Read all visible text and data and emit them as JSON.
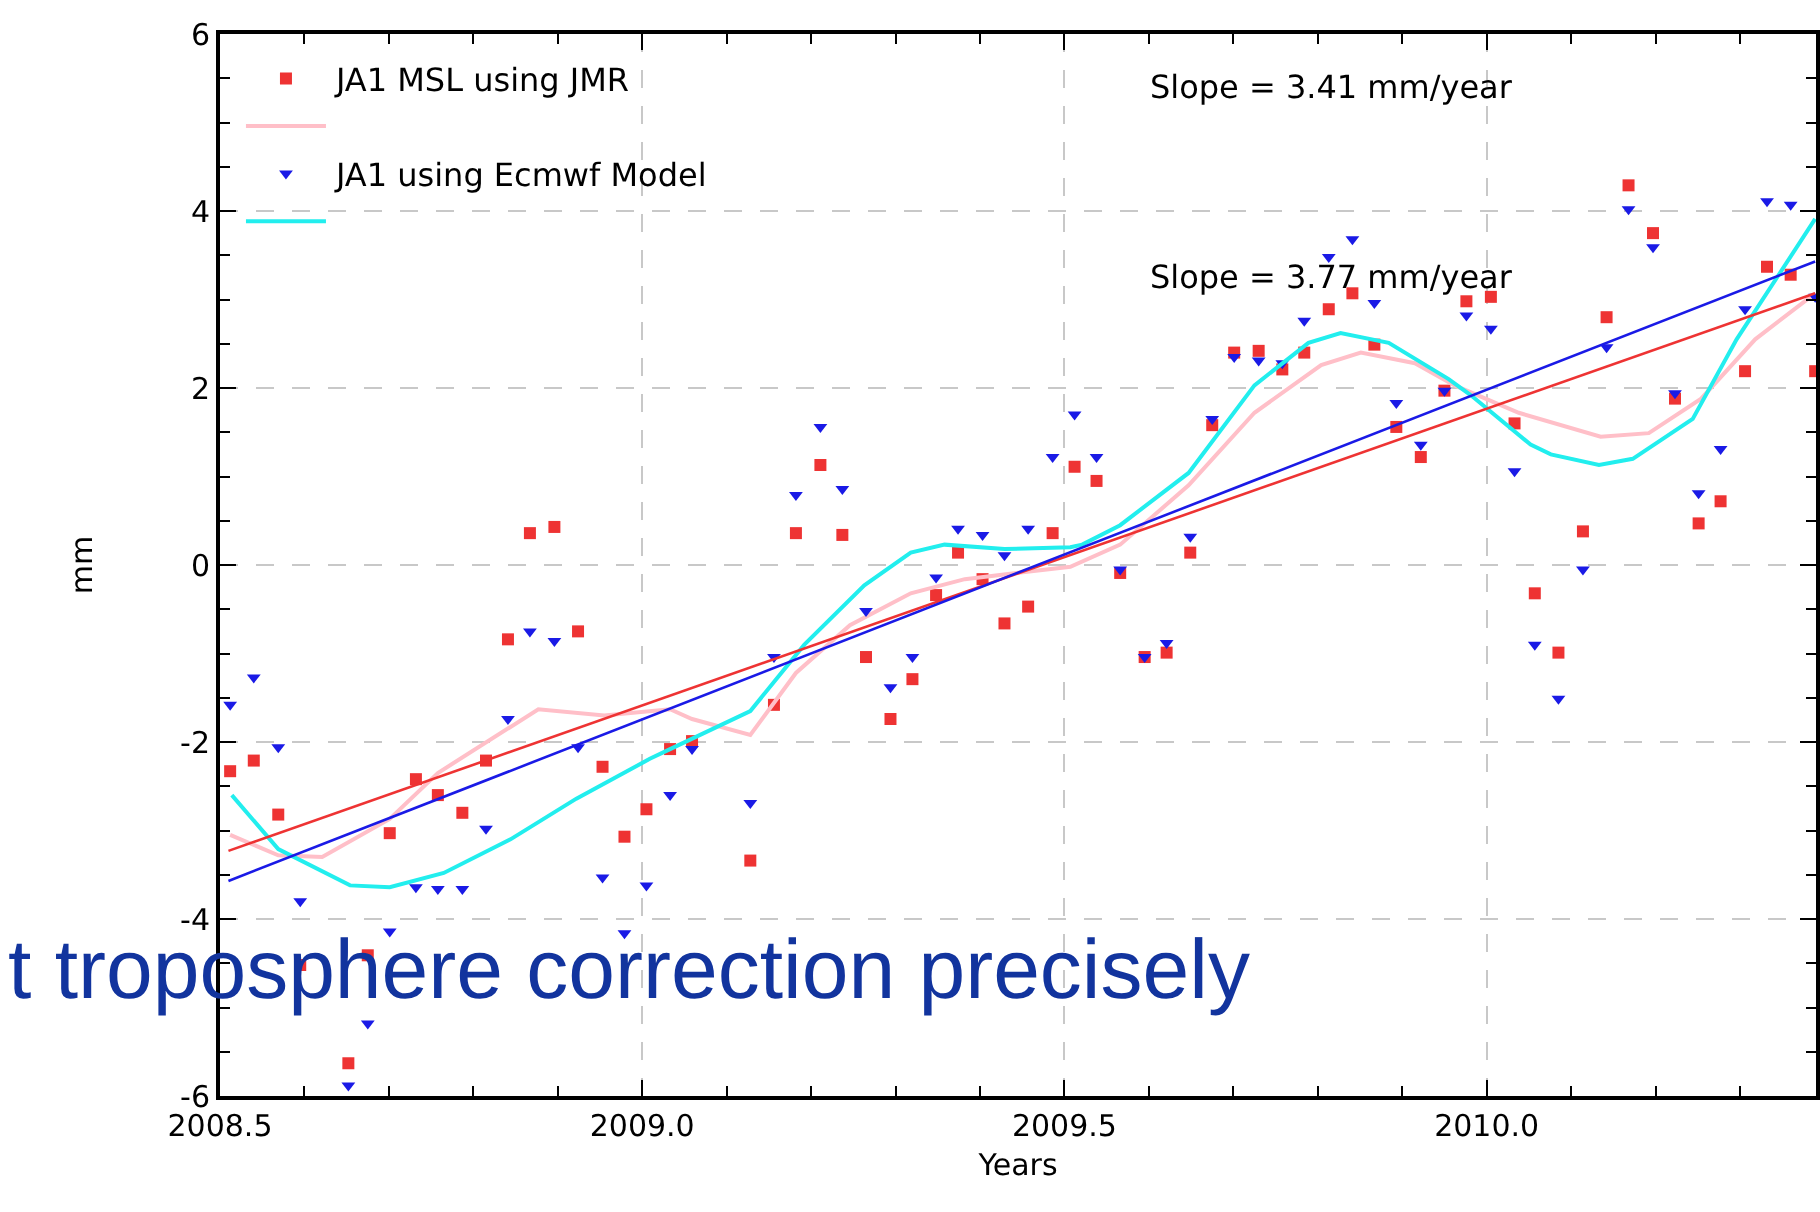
{
  "chart_data": {
    "type": "scatter",
    "xlabel": "Years",
    "ylabel": "mm",
    "xlim": [
      2008.5,
      2010.39
    ],
    "xticks": [
      {
        "value": 2008.5,
        "label": "2008.5"
      },
      {
        "value": 2009,
        "label": "2009.0"
      },
      {
        "value": 2009.5,
        "label": "2009.5"
      },
      {
        "value": 2010,
        "label": "2010.0"
      }
    ],
    "ylim": [
      -6,
      6
    ],
    "yticks": [
      -6,
      -4,
      -2,
      0,
      2,
      4,
      6
    ],
    "grid": true,
    "legend": "top left",
    "x": [
      2008.512,
      2008.54,
      2008.569,
      2008.595,
      2008.652,
      2008.675,
      2008.701,
      2008.732,
      2008.758,
      2008.787,
      2008.815,
      2008.841,
      2008.867,
      2008.896,
      2008.924,
      2008.953,
      2008.979,
      2009.005,
      2009.033,
      2009.059,
      2009.128,
      2009.156,
      2009.182,
      2009.211,
      2009.237,
      2009.265,
      2009.294,
      2009.32,
      2009.348,
      2009.374,
      2009.403,
      2009.429,
      2009.457,
      2009.486,
      2009.512,
      2009.538,
      2009.566,
      2009.595,
      2009.621,
      2009.649,
      2009.675,
      2009.701,
      2009.73,
      2009.758,
      2009.784,
      2009.813,
      2009.841,
      2009.867,
      2009.893,
      2009.922,
      2009.95,
      2009.976,
      2010.005,
      2010.033,
      2010.057,
      2010.085,
      2010.114,
      2010.142,
      2010.168,
      2010.197,
      2010.223,
      2010.251,
      2010.277,
      2010.306,
      2010.332,
      2010.36,
      2010.389
    ],
    "series": [
      {
        "name": "JA1 MSL using JMR",
        "marker": "square",
        "color": "#ee3333",
        "values": [
          -2.33,
          -2.21,
          -2.82,
          -4.52,
          -5.63,
          -4.41,
          -3.03,
          -2.42,
          -2.6,
          -2.8,
          -2.21,
          -0.84,
          0.36,
          0.43,
          -0.75,
          -2.28,
          -3.07,
          -2.76,
          -2.08,
          -1.99,
          -3.34,
          -1.58,
          0.36,
          1.13,
          0.34,
          -1.04,
          -1.74,
          -1.29,
          -0.34,
          0.14,
          -0.16,
          -0.66,
          -0.47,
          0.36,
          1.11,
          0.95,
          -0.09,
          -1.04,
          -0.99,
          0.14,
          1.58,
          2.4,
          2.42,
          2.21,
          2.4,
          2.89,
          3.07,
          2.49,
          1.56,
          1.22,
          1.97,
          2.98,
          3.03,
          1.6,
          -0.32,
          -0.99,
          0.38,
          2.8,
          4.29,
          3.75,
          1.88,
          0.47,
          0.72,
          2.19,
          3.37,
          3.28,
          2.19
        ]
      },
      {
        "type": "line",
        "color": "#ffbfc8",
        "x": [
          2008.512,
          2008.569,
          2008.621,
          2008.701,
          2008.758,
          2008.877,
          2008.955,
          2009.033,
          2009.059,
          2009.128,
          2009.182,
          2009.246,
          2009.318,
          2009.382,
          2009.443,
          2009.507,
          2009.566,
          2009.647,
          2009.725,
          2009.804,
          2009.851,
          2009.915,
          2009.962,
          2010.038,
          2010.135,
          2010.192,
          2010.254,
          2010.318,
          2010.389
        ],
        "values": [
          -3.05,
          -3.28,
          -3.3,
          -2.87,
          -2.35,
          -1.63,
          -1.7,
          -1.63,
          -1.74,
          -1.92,
          -1.22,
          -0.68,
          -0.32,
          -0.16,
          -0.09,
          -0.02,
          0.23,
          0.9,
          1.72,
          2.26,
          2.4,
          2.28,
          2.03,
          1.72,
          1.45,
          1.49,
          1.88,
          2.55,
          3.07
        ]
      },
      {
        "name": "JA1 using Ecmwf Model",
        "marker": "triangle",
        "color": "#1a1ae6",
        "values": [
          -1.58,
          -1.27,
          -2.06,
          -3.8,
          -5.88,
          -5.18,
          -4.14,
          -3.64,
          -3.66,
          -3.66,
          -2.98,
          -1.74,
          -0.75,
          -0.86,
          -2.06,
          -3.53,
          -4.16,
          -3.62,
          -2.6,
          -2.08,
          -2.69,
          -1.04,
          0.79,
          1.56,
          0.86,
          -0.52,
          -1.38,
          -1.04,
          -0.14,
          0.41,
          0.34,
          0.11,
          0.41,
          1.22,
          1.7,
          1.22,
          -0.05,
          -1.04,
          -0.88,
          0.32,
          1.65,
          2.35,
          2.31,
          2.28,
          2.76,
          3.48,
          3.68,
          2.96,
          1.83,
          1.36,
          1.97,
          2.82,
          2.67,
          1.06,
          -0.9,
          -1.51,
          -0.05,
          2.46,
          4.02,
          3.59,
          1.94,
          0.81,
          1.31,
          2.89,
          4.11,
          4.07,
          3.03
        ]
      },
      {
        "type": "line",
        "color": "#22eeee",
        "x": [
          2008.514,
          2008.569,
          2008.654,
          2008.701,
          2008.765,
          2008.844,
          2008.922,
          2009.009,
          2009.033,
          2009.128,
          2009.192,
          2009.263,
          2009.318,
          2009.358,
          2009.429,
          2009.507,
          2009.521,
          2009.566,
          2009.647,
          2009.725,
          2009.789,
          2009.827,
          2009.884,
          2009.955,
          2009.981,
          2010.052,
          2010.076,
          2010.133,
          2010.173,
          2010.244,
          2010.296,
          2010.389
        ],
        "values": [
          -2.6,
          -3.21,
          -3.62,
          -3.64,
          -3.48,
          -3.1,
          -2.64,
          -2.19,
          -2.08,
          -1.65,
          -0.9,
          -0.23,
          0.14,
          0.23,
          0.18,
          0.2,
          0.23,
          0.45,
          1.04,
          2.03,
          2.51,
          2.62,
          2.51,
          2.1,
          1.92,
          1.36,
          1.25,
          1.13,
          1.2,
          1.65,
          2.55,
          3.91
        ]
      },
      {
        "type": "line",
        "color": "#ee3333",
        "x": [
          2008.51,
          2010.389
        ],
        "values": [
          -3.23,
          3.07
        ]
      },
      {
        "type": "line",
        "color": "#1a1ae6",
        "x": [
          2008.51,
          2010.389
        ],
        "values": [
          -3.57,
          3.43
        ]
      }
    ],
    "annotations": [
      "Slope = 3.41 mm/year",
      "Slope = 3.77 mm/year",
      "t troposphere correction precisely"
    ]
  }
}
